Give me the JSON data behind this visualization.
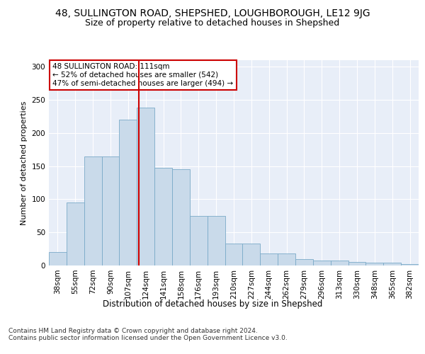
{
  "title1": "48, SULLINGTON ROAD, SHEPSHED, LOUGHBOROUGH, LE12 9JG",
  "title2": "Size of property relative to detached houses in Shepshed",
  "xlabel": "Distribution of detached houses by size in Shepshed",
  "ylabel": "Number of detached properties",
  "categories": [
    "38sqm",
    "55sqm",
    "72sqm",
    "90sqm",
    "107sqm",
    "124sqm",
    "141sqm",
    "158sqm",
    "176sqm",
    "193sqm",
    "210sqm",
    "227sqm",
    "244sqm",
    "262sqm",
    "279sqm",
    "296sqm",
    "313sqm",
    "330sqm",
    "348sqm",
    "365sqm",
    "382sqm"
  ],
  "values": [
    20,
    95,
    165,
    165,
    220,
    238,
    147,
    145,
    75,
    75,
    33,
    33,
    18,
    18,
    10,
    8,
    8,
    5,
    4,
    4,
    2
  ],
  "bar_color": "#c9daea",
  "bar_edge_color": "#7aaac8",
  "vline_x": 4.62,
  "vline_color": "#cc0000",
  "annotation_text": "48 SULLINGTON ROAD: 111sqm\n← 52% of detached houses are smaller (542)\n47% of semi-detached houses are larger (494) →",
  "annotation_box_color": "#ffffff",
  "annotation_box_edge": "#cc0000",
  "ylim": [
    0,
    310
  ],
  "yticks": [
    0,
    50,
    100,
    150,
    200,
    250,
    300
  ],
  "footer_text": "Contains HM Land Registry data © Crown copyright and database right 2024.\nContains public sector information licensed under the Open Government Licence v3.0.",
  "plot_bg_color": "#e8eef8",
  "title1_fontsize": 10,
  "title2_fontsize": 9,
  "xlabel_fontsize": 8.5,
  "ylabel_fontsize": 8,
  "footer_fontsize": 6.5,
  "tick_fontsize": 7.5,
  "annot_fontsize": 7.5
}
